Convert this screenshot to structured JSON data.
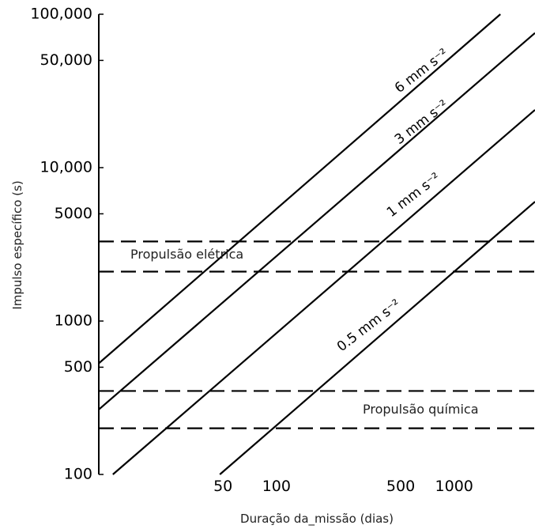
{
  "chart_data": {
    "type": "line",
    "xlabel": "Duração da_missão (dias)",
    "ylabel": "Impulso específico (s)",
    "x_scale": "log",
    "y_scale": "log",
    "xlim": [
      10,
      2850
    ],
    "ylim": [
      100,
      100000
    ],
    "grid": false,
    "xticks": [
      {
        "value": 50,
        "label": "50"
      },
      {
        "value": 100,
        "label": "100"
      },
      {
        "value": 500,
        "label": "500"
      },
      {
        "value": 1000,
        "label": "1000"
      }
    ],
    "yticks": [
      {
        "value": 100,
        "label": "100"
      },
      {
        "value": 500,
        "label": "500"
      },
      {
        "value": 1000,
        "label": "1000"
      },
      {
        "value": 5000,
        "label": "5000"
      },
      {
        "value": 10000,
        "label": "10,000"
      },
      {
        "value": 50000,
        "label": "50,000"
      },
      {
        "value": 100000,
        "label": "100,000"
      }
    ],
    "series": [
      {
        "name": "6 mm s⁻²",
        "points": [
          [
            10,
            530
          ],
          [
            1820,
            100000
          ]
        ]
      },
      {
        "name": "3 mm s⁻²",
        "points": [
          [
            10,
            265
          ],
          [
            2850,
            75500
          ]
        ]
      },
      {
        "name": "1 mm s⁻²",
        "points": [
          [
            12,
            100
          ],
          [
            2850,
            23800
          ]
        ]
      },
      {
        "name": "0.5 mm s⁻²",
        "points": [
          [
            48,
            100
          ],
          [
            2850,
            6000
          ]
        ]
      }
    ],
    "reference_lines": [
      {
        "y": 3300,
        "style": "dashed"
      },
      {
        "y": 2100,
        "style": "dashed"
      },
      {
        "y": 350,
        "style": "dashed"
      },
      {
        "y": 200,
        "style": "dashed"
      }
    ],
    "annotations": [
      {
        "text": "Propulsão elétrica"
      },
      {
        "text": "Propulsão química"
      }
    ]
  }
}
